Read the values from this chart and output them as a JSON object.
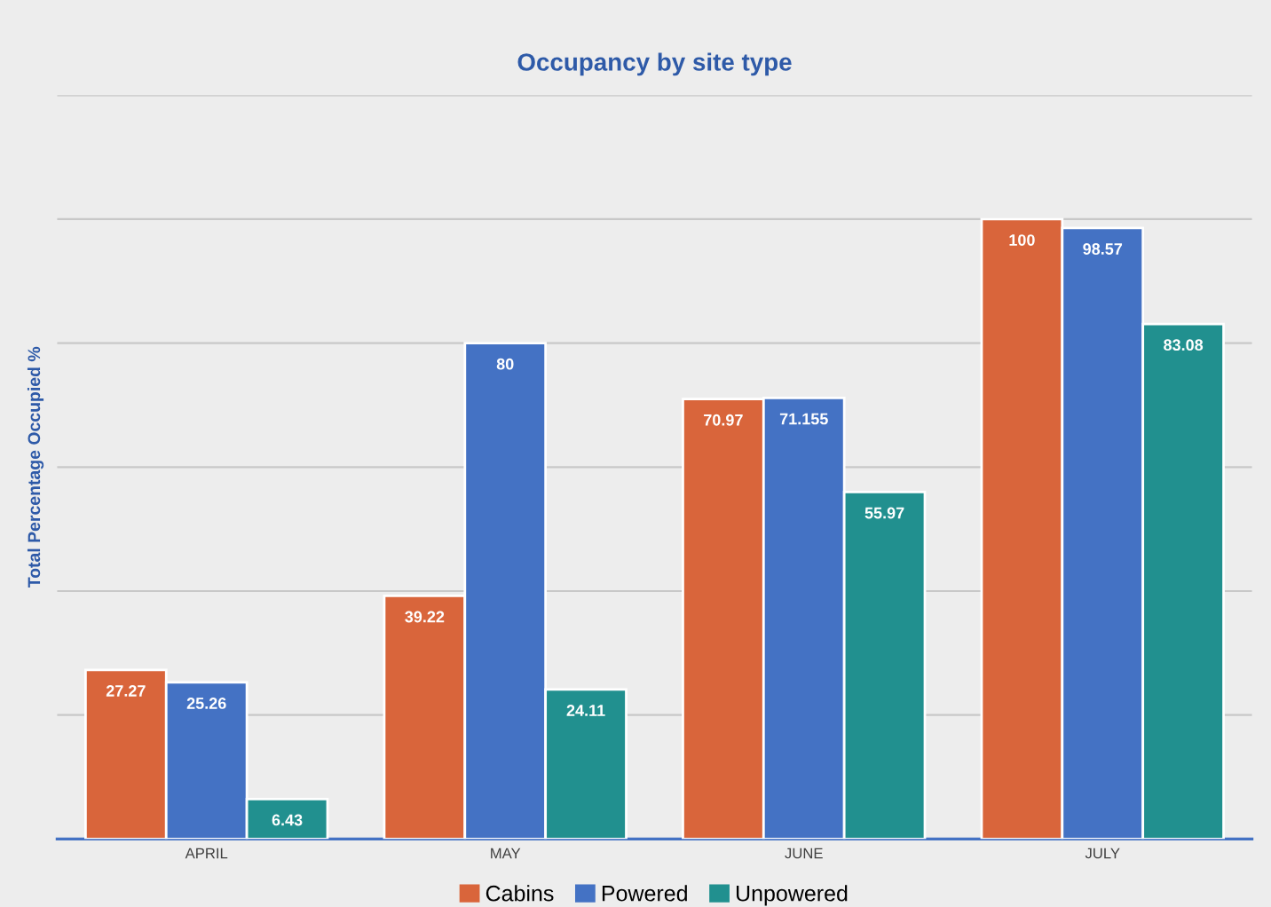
{
  "chart_data": {
    "type": "bar",
    "title": "Occupancy by site type",
    "ylabel": "Total Percentage Occupied %",
    "categories": [
      "APRIL",
      "MAY",
      "JUNE",
      "JULY"
    ],
    "series": [
      {
        "name": "Cabins",
        "color": "#d9653b",
        "values": [
          27.27,
          39.22,
          70.97,
          100
        ]
      },
      {
        "name": "Powered",
        "color": "#4472c4",
        "values": [
          25.26,
          80,
          71.155,
          98.57
        ]
      },
      {
        "name": "Unpowered",
        "color": "#21908f",
        "values": [
          6.43,
          24.11,
          55.97,
          83.08
        ]
      }
    ],
    "data_labels": true,
    "ylim": [
      0,
      120
    ],
    "yticks": [
      {
        "value": 0,
        "label": null
      },
      {
        "value": 20,
        "label": null
      },
      {
        "value": 40,
        "label": null
      },
      {
        "value": 60,
        "label": null
      },
      {
        "value": 80,
        "label": null
      },
      {
        "value": 100,
        "label": null
      },
      {
        "value": 120,
        "label": null
      }
    ],
    "grid": "y",
    "legend": "bottom"
  }
}
